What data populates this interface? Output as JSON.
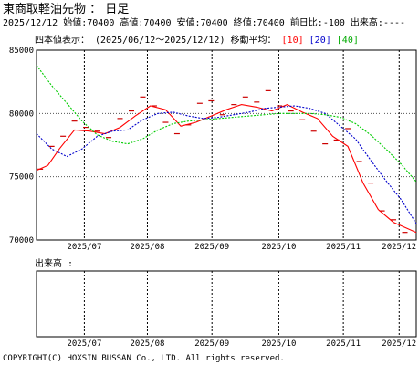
{
  "header": {
    "title": "東商取軽油先物 ： 日足",
    "quote_line": "2025/12/12 始値:70400 高値:70400 安値:70400 終値:70400 前日比:-100 出来高:----"
  },
  "legend": {
    "prefix": "四本値表示： (2025/06/12～2025/12/12) 移動平均：",
    "ma10": "[10]",
    "ma20": "[20]",
    "ma40": "[40]"
  },
  "volume_panel": {
    "label": "出来高 :"
  },
  "footer": {
    "copyright": "COPYRIGHT(C) HOXSIN BUSSAN Co., LTD. All rights reserved."
  },
  "colors": {
    "ma10": "#ff0000",
    "ma20": "#0000cc",
    "ma40": "#00cc00",
    "candle": "#cc0000",
    "grid": "#000000"
  },
  "chart_data": {
    "type": "line",
    "x_labels": [
      "2025/07",
      "2025/08",
      "2025/09",
      "2025/10",
      "2025/11",
      "2025/12"
    ],
    "x_label_positions": [
      0.126,
      0.292,
      0.462,
      0.638,
      0.808,
      0.955
    ],
    "ylim": [
      70000,
      85000
    ],
    "y_ticks": [
      85000,
      80000,
      75000,
      70000
    ],
    "series": [
      {
        "name": "[10]",
        "color": "#ff0000",
        "x": [
          0.0,
          0.03,
          0.06,
          0.1,
          0.14,
          0.18,
          0.22,
          0.26,
          0.3,
          0.34,
          0.38,
          0.42,
          0.46,
          0.5,
          0.54,
          0.58,
          0.62,
          0.66,
          0.7,
          0.74,
          0.78,
          0.82,
          0.86,
          0.9,
          0.94,
          1.0
        ],
        "y": [
          75500,
          75900,
          77200,
          78700,
          78600,
          78400,
          78900,
          79800,
          80600,
          80300,
          79000,
          79300,
          79800,
          80300,
          80700,
          80500,
          80200,
          80700,
          80100,
          79600,
          78200,
          77400,
          74500,
          72400,
          71400,
          70600
        ]
      },
      {
        "name": "[20]",
        "color": "#0000cc",
        "x": [
          0.0,
          0.04,
          0.08,
          0.12,
          0.16,
          0.2,
          0.24,
          0.28,
          0.32,
          0.36,
          0.4,
          0.44,
          0.48,
          0.52,
          0.56,
          0.6,
          0.64,
          0.68,
          0.72,
          0.76,
          0.8,
          0.84,
          0.88,
          0.92,
          0.96,
          1.0
        ],
        "y": [
          78400,
          77200,
          76600,
          77200,
          78200,
          78600,
          78700,
          79500,
          80000,
          80100,
          79800,
          79600,
          79700,
          79900,
          80100,
          80400,
          80500,
          80600,
          80400,
          80000,
          79000,
          78000,
          76300,
          74700,
          73200,
          71300
        ]
      },
      {
        "name": "[40]",
        "color": "#00cc00",
        "x": [
          0.0,
          0.04,
          0.08,
          0.12,
          0.16,
          0.2,
          0.24,
          0.28,
          0.32,
          0.36,
          0.4,
          0.44,
          0.48,
          0.52,
          0.56,
          0.6,
          0.64,
          0.68,
          0.72,
          0.76,
          0.8,
          0.84,
          0.88,
          0.92,
          0.96,
          1.0
        ],
        "y": [
          83800,
          82200,
          80800,
          79400,
          78300,
          77800,
          77600,
          78000,
          78700,
          79200,
          79400,
          79500,
          79600,
          79700,
          79800,
          79900,
          80000,
          80000,
          80000,
          79900,
          79700,
          79200,
          78300,
          77200,
          76000,
          74600
        ]
      }
    ],
    "price_ticks": {
      "x": [
        0.01,
        0.04,
        0.07,
        0.1,
        0.13,
        0.16,
        0.19,
        0.22,
        0.25,
        0.28,
        0.31,
        0.34,
        0.37,
        0.4,
        0.43,
        0.46,
        0.49,
        0.52,
        0.55,
        0.58,
        0.61,
        0.64,
        0.67,
        0.7,
        0.73,
        0.76,
        0.79,
        0.82,
        0.85,
        0.88,
        0.91,
        0.94,
        0.97
      ],
      "y": [
        75600,
        77400,
        78200,
        79400,
        78900,
        78600,
        78100,
        79600,
        80200,
        81300,
        80600,
        79300,
        78400,
        79100,
        80800,
        81000,
        79900,
        80700,
        81300,
        80900,
        81800,
        80600,
        80200,
        79500,
        78600,
        77600,
        77900,
        78800,
        76200,
        74500,
        72300,
        71600,
        70600
      ]
    }
  }
}
